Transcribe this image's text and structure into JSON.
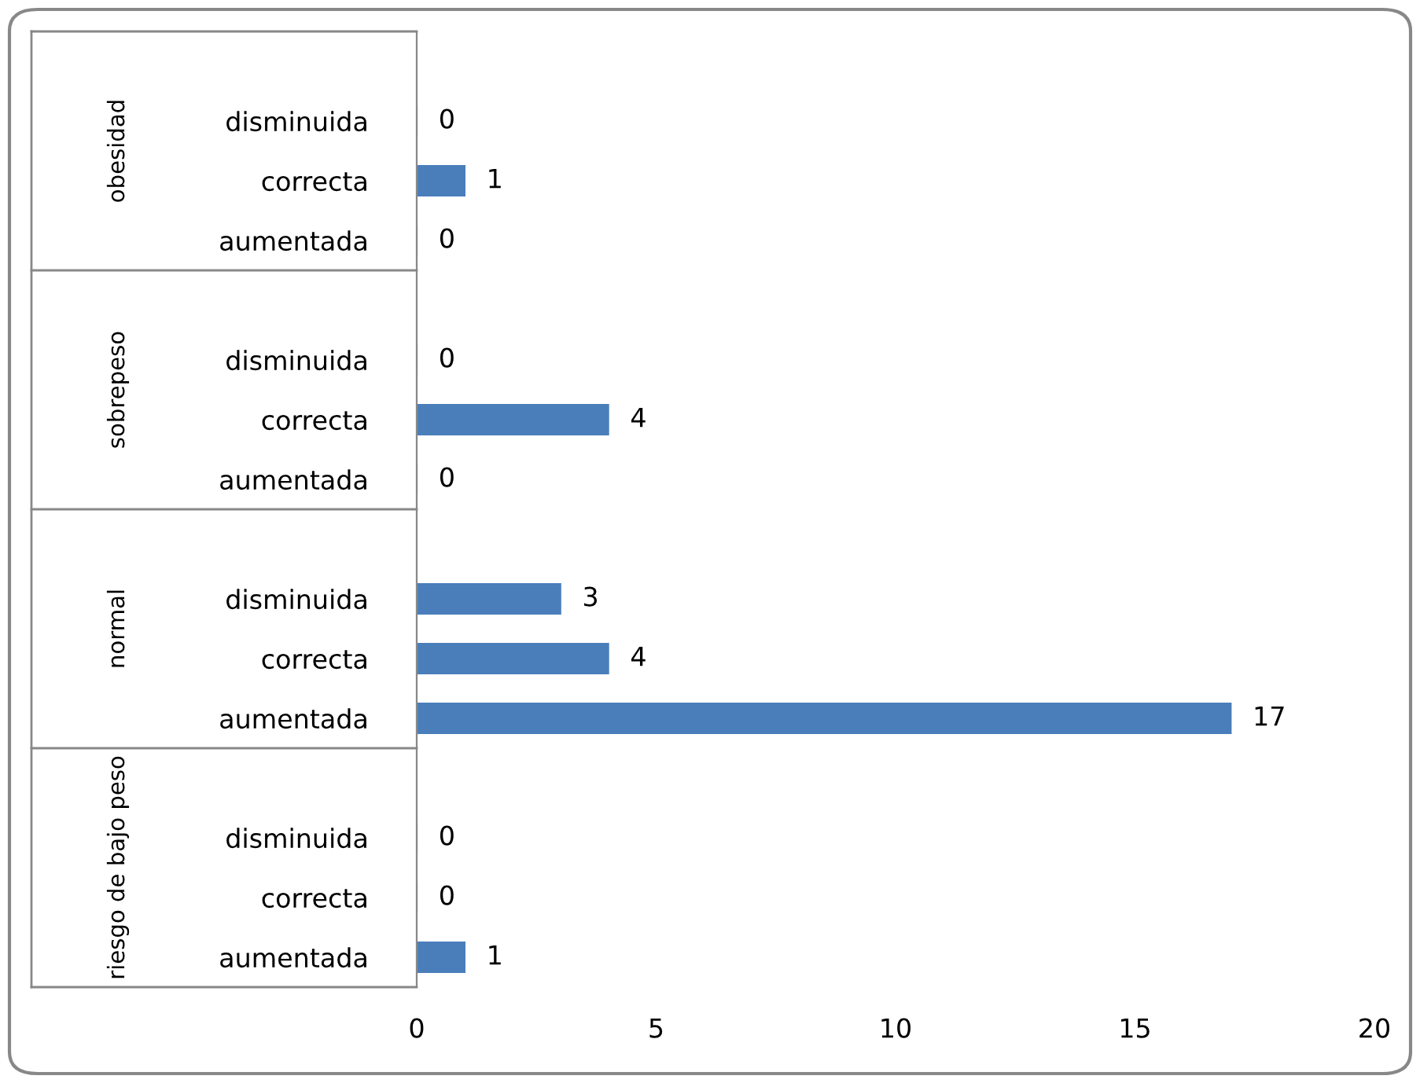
{
  "chart_data": {
    "type": "bar",
    "orientation": "horizontal",
    "categories": [
      null,
      "disminuida",
      "correcta",
      "aumentada",
      null,
      "disminuida",
      "correcta",
      "aumentada",
      null,
      "disminuida",
      "correcta",
      "aumentada",
      null,
      "disminuida",
      "correcta",
      "aumentada"
    ],
    "values": [
      null,
      0,
      1,
      0,
      null,
      0,
      4,
      0,
      null,
      3,
      4,
      17,
      null,
      0,
      0,
      1
    ],
    "color": "#4a7ebb",
    "data_labels": true,
    "xlim": [
      0,
      20
    ],
    "xticks": [
      0,
      5,
      10,
      15,
      20
    ],
    "grid": false,
    "legend": false,
    "annotations": [
      "obesidad",
      "sobrepeso",
      "normal",
      "riesgo de bajo peso"
    ]
  }
}
